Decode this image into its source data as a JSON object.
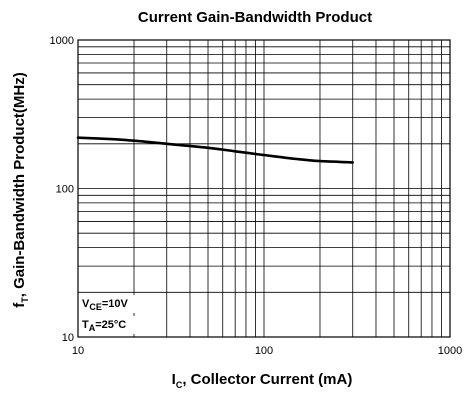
{
  "chart_data": {
    "type": "line",
    "title": "Current Gain-Bandwidth Product",
    "xlabel": {
      "main": "I",
      "sub": "C",
      "rest": ", Collector Current (mA)"
    },
    "ylabel": {
      "main": "f",
      "sub": "T",
      "rest": ", Gain-Bandwidth Product(MHz)"
    },
    "x_scale": "log",
    "y_scale": "log",
    "xlim": [
      10,
      1000
    ],
    "ylim": [
      10,
      1000
    ],
    "x_ticks": [
      10,
      100,
      1000
    ],
    "x_tick_labels": [
      "10",
      "100",
      "1000"
    ],
    "y_ticks": [
      10,
      100,
      1000
    ],
    "y_tick_labels": [
      "10",
      "100",
      "1000"
    ],
    "grid": true,
    "conditions": [
      {
        "main": "V",
        "sub": "CE",
        "rest": "=10V"
      },
      {
        "main": "T",
        "sub": "A",
        "rest": "=25°C"
      }
    ],
    "series": [
      {
        "x": [
          10,
          15,
          20,
          30,
          50,
          70,
          100,
          150,
          200,
          300
        ],
        "y": [
          220,
          215,
          210,
          200,
          188,
          178,
          168,
          158,
          153,
          150
        ]
      }
    ]
  }
}
